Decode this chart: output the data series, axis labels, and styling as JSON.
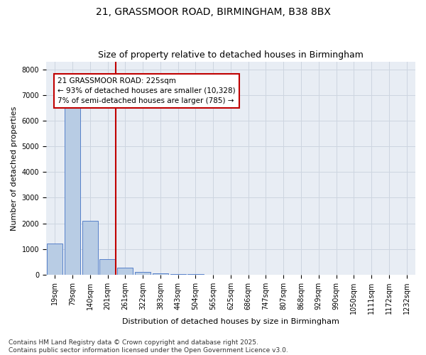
{
  "title1": "21, GRASSMOOR ROAD, BIRMINGHAM, B38 8BX",
  "title2": "Size of property relative to detached houses in Birmingham",
  "xlabel": "Distribution of detached houses by size in Birmingham",
  "ylabel": "Number of detached properties",
  "categories": [
    "19sqm",
    "79sqm",
    "140sqm",
    "201sqm",
    "261sqm",
    "322sqm",
    "383sqm",
    "443sqm",
    "504sqm",
    "565sqm",
    "625sqm",
    "686sqm",
    "747sqm",
    "807sqm",
    "868sqm",
    "929sqm",
    "990sqm",
    "1050sqm",
    "1111sqm",
    "1172sqm",
    "1232sqm"
  ],
  "values": [
    1200,
    6550,
    2100,
    600,
    260,
    110,
    50,
    20,
    8,
    3,
    1,
    0,
    0,
    0,
    0,
    0,
    0,
    0,
    0,
    0,
    0
  ],
  "bar_color": "#b8cce4",
  "bar_edge_color": "#4472c4",
  "vline_color": "#c00000",
  "vline_pos": 3.45,
  "annotation_text": "21 GRASSMOOR ROAD: 225sqm\n← 93% of detached houses are smaller (10,328)\n7% of semi-detached houses are larger (785) →",
  "annotation_box_color": "#ffffff",
  "annotation_box_edge": "#c00000",
  "ylim": [
    0,
    8300
  ],
  "yticks": [
    0,
    1000,
    2000,
    3000,
    4000,
    5000,
    6000,
    7000,
    8000
  ],
  "grid_color": "#cdd5e0",
  "background_color": "#e8edf4",
  "footer": "Contains HM Land Registry data © Crown copyright and database right 2025.\nContains public sector information licensed under the Open Government Licence v3.0.",
  "title_fontsize": 10,
  "subtitle_fontsize": 9,
  "axis_label_fontsize": 8,
  "tick_fontsize": 7,
  "footer_fontsize": 6.5,
  "annotation_fontsize": 7.5
}
